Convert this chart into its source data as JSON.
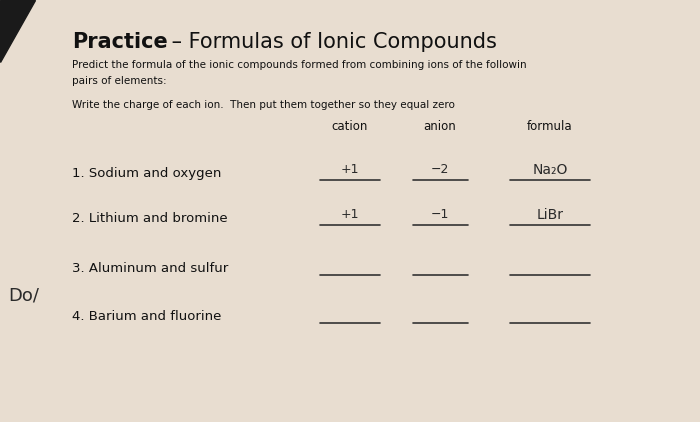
{
  "title_bold": "Practice",
  "title_dash": " – Formulas of Ionic Compounds",
  "subtitle1": "Predict the formula of the ionic compounds formed from combining ions of the followin",
  "subtitle2": "pairs of elements:",
  "instruction": "Write the charge of each ion.  Then put them together so they equal zero",
  "col_cation": "cation",
  "col_anion": "anion",
  "col_formula": "formula",
  "items": [
    {
      "number": "1. Sodium and oxygen",
      "cation": "+1",
      "anion": "−2",
      "formula": "Na₂O"
    },
    {
      "number": "2. Lithium and bromine",
      "cation": "+1",
      "anion": "−1",
      "formula": "LiBr"
    },
    {
      "number": "3. Aluminum and sulfur",
      "cation": "",
      "anion": "",
      "formula": ""
    },
    {
      "number": "4. Barium and fluorine",
      "cation": "",
      "anion": "",
      "formula": ""
    }
  ],
  "bg_color": "#e8ddd0",
  "handwritten_color": "#2a2a2a",
  "printed_color": "#111111",
  "corner_text": "Do/",
  "line_color": "#333333"
}
